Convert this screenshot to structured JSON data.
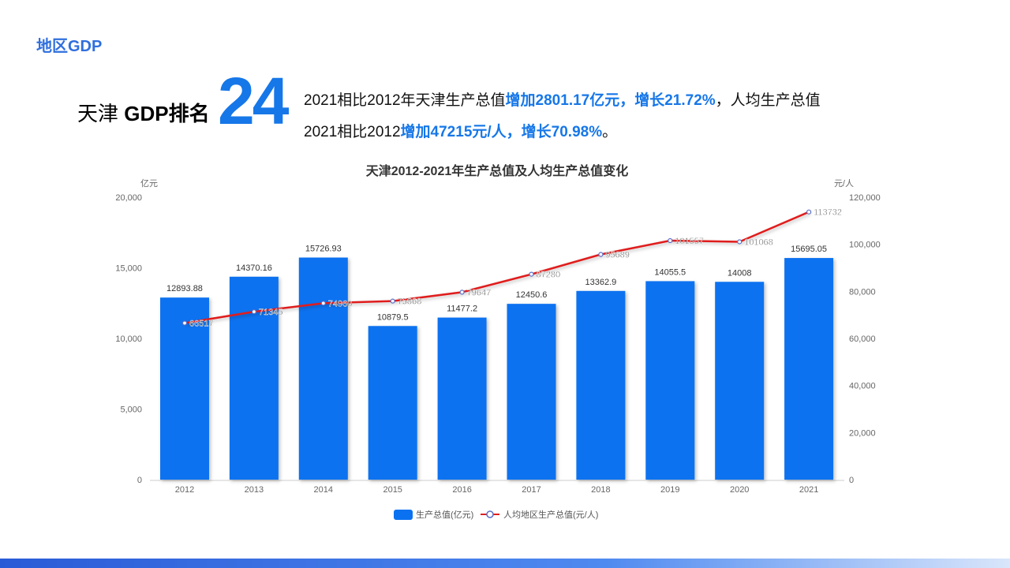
{
  "section_title": "地区GDP",
  "ranking": {
    "label_city": "天津",
    "label_rest": "GDP排名",
    "value": "24"
  },
  "summary": {
    "line1_a": "2021相比2012年天津生产总值",
    "line1_b": "增加2801.17亿元，增长21.72%",
    "line1_c": "，人均生产总值",
    "line2_a": "2021相比2012",
    "line2_b": "增加47215元/人，增长70.98%",
    "line2_c": "。"
  },
  "chart_data": {
    "type": "bar+line",
    "title": "天津2012-2021年生产总值及人均生产总值变化",
    "categories": [
      "2012",
      "2013",
      "2014",
      "2015",
      "2016",
      "2017",
      "2018",
      "2019",
      "2020",
      "2021"
    ],
    "series": [
      {
        "name": "生产总值(亿元)",
        "type": "bar",
        "axis": "left",
        "color": "#0a72f0",
        "values": [
          12893.88,
          14370.16,
          15726.93,
          10879.5,
          11477.2,
          12450.6,
          13362.9,
          14055.5,
          14008,
          15695.05
        ]
      },
      {
        "name": "人均地区生产总值(元/人)",
        "type": "line",
        "axis": "right",
        "color": "#e01f1f",
        "values": [
          66517,
          71345,
          74960,
          75868,
          79647,
          87280,
          95689,
          101557,
          101068,
          113732
        ]
      }
    ],
    "y_left": {
      "unit": "亿元",
      "range": [
        0,
        20000
      ],
      "ticks": [
        "0",
        "5,000",
        "10,000",
        "15,000",
        "20,000"
      ]
    },
    "y_right": {
      "unit": "元/人",
      "range": [
        0,
        120000
      ],
      "ticks": [
        "0",
        "20,000",
        "40,000",
        "60,000",
        "80,000",
        "100,000",
        "120,000"
      ]
    },
    "grid": false,
    "legend": "bottom"
  }
}
